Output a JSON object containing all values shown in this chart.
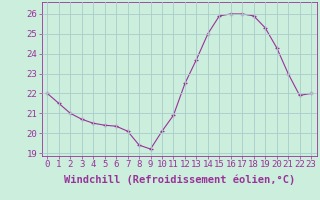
{
  "x": [
    0,
    1,
    2,
    3,
    4,
    5,
    6,
    7,
    8,
    9,
    10,
    11,
    12,
    13,
    14,
    15,
    16,
    17,
    18,
    19,
    20,
    21,
    22,
    23
  ],
  "y": [
    22.0,
    21.5,
    21.0,
    20.7,
    20.5,
    20.4,
    20.35,
    20.1,
    19.4,
    19.2,
    20.1,
    20.9,
    22.5,
    23.7,
    25.0,
    25.9,
    26.0,
    26.0,
    25.9,
    25.3,
    24.3,
    23.0,
    21.9,
    22.0
  ],
  "xlim": [
    -0.5,
    23.5
  ],
  "ylim": [
    18.85,
    26.6
  ],
  "yticks": [
    19,
    20,
    21,
    22,
    23,
    24,
    25,
    26
  ],
  "xticks": [
    0,
    1,
    2,
    3,
    4,
    5,
    6,
    7,
    8,
    9,
    10,
    11,
    12,
    13,
    14,
    15,
    16,
    17,
    18,
    19,
    20,
    21,
    22,
    23
  ],
  "xlabel": "Windchill (Refroidissement éolien,°C)",
  "line_color": "#993399",
  "marker": "+",
  "bg_color": "#cceedd",
  "grid_color": "#aacccc",
  "axis_label_color": "#993399",
  "tick_label_color": "#993399",
  "fontsize_ticks": 6.5,
  "fontsize_xlabel": 7.5
}
